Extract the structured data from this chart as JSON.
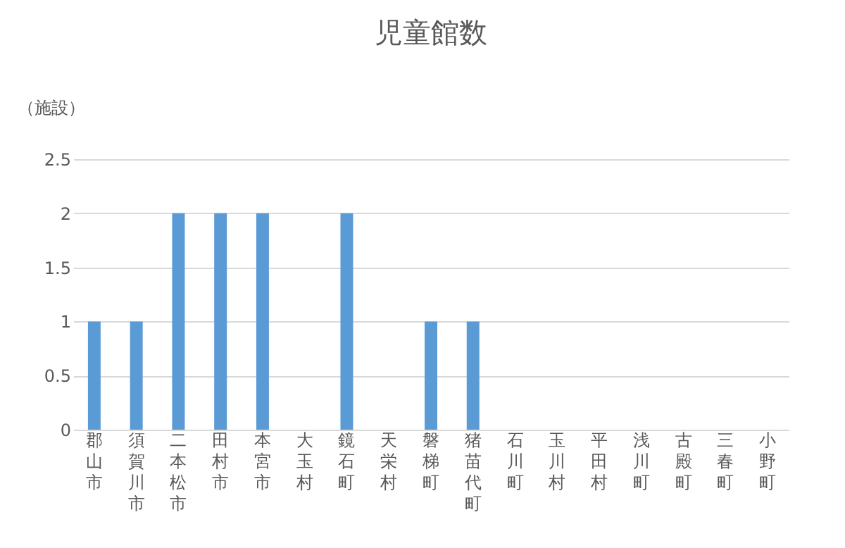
{
  "chart_data": {
    "type": "bar",
    "title": "児童館数",
    "ylabel": "（施設）",
    "categories": [
      "郡山市",
      "須賀川市",
      "二本松市",
      "田村市",
      "本宮市",
      "大玉村",
      "鏡石町",
      "天栄村",
      "磐梯町",
      "猪苗代町",
      "石川町",
      "玉川村",
      "平田村",
      "浅川町",
      "古殿町",
      "三春町",
      "小野町"
    ],
    "values": [
      1,
      1,
      2,
      2,
      2,
      0,
      2,
      0,
      1,
      1,
      0,
      0,
      0,
      0,
      0,
      0,
      0
    ],
    "color": "#5b9bd5",
    "ylim": [
      0,
      2.5
    ],
    "yticks": [
      0,
      0.5,
      1,
      1.5,
      2,
      2.5
    ],
    "grid": "y"
  }
}
